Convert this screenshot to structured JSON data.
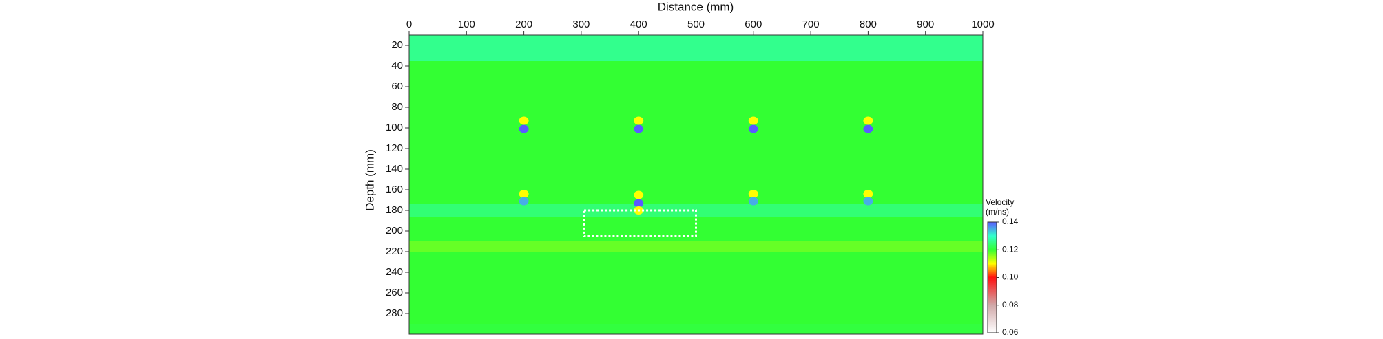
{
  "chart_data": {
    "type": "heatmap",
    "xlabel": "Distance (mm)",
    "ylabel": "Depth (mm)",
    "xlim": [
      0,
      1000
    ],
    "xticks": [
      0,
      100,
      200,
      300,
      400,
      500,
      600,
      700,
      800,
      900,
      1000
    ],
    "ylim": [
      10,
      300
    ],
    "yticks": [
      20,
      40,
      60,
      80,
      100,
      120,
      140,
      160,
      180,
      200,
      220,
      240,
      260,
      280
    ],
    "colorbar_title": [
      "Velocity",
      "(m/ns)"
    ],
    "clim": [
      0.06,
      0.14
    ],
    "cticks": [
      0.06,
      0.08,
      {
        "value": 0.1,
        "label": "0.10"
      },
      0.12,
      0.14
    ],
    "colorscale": [
      [
        0.06,
        "#ffffff"
      ],
      [
        0.08,
        "#d0a8a8"
      ],
      [
        0.1,
        "#ff1010"
      ],
      [
        0.11,
        "#ffff00"
      ],
      [
        0.12,
        "#33ff33"
      ],
      [
        0.13,
        "#33ffcc"
      ],
      [
        0.14,
        "#5a5aff"
      ]
    ],
    "background": 0.12,
    "bands": [
      {
        "y": [
          10,
          35
        ],
        "value": 0.127
      },
      {
        "y": [
          174,
          186
        ],
        "value": 0.125
      },
      {
        "y": [
          210,
          220
        ],
        "value": 0.117
      },
      {
        "y": [
          290,
          300
        ],
        "value": 0.121
      }
    ],
    "anomalies": [
      {
        "x": 200,
        "y": 93,
        "value": 0.11
      },
      {
        "x": 200,
        "y": 101,
        "value": 0.14
      },
      {
        "x": 400,
        "y": 93,
        "value": 0.11
      },
      {
        "x": 400,
        "y": 101,
        "value": 0.14
      },
      {
        "x": 600,
        "y": 93,
        "value": 0.11
      },
      {
        "x": 600,
        "y": 101,
        "value": 0.14
      },
      {
        "x": 800,
        "y": 93,
        "value": 0.11
      },
      {
        "x": 800,
        "y": 101,
        "value": 0.14
      },
      {
        "x": 200,
        "y": 164,
        "value": 0.11
      },
      {
        "x": 200,
        "y": 171,
        "value": 0.135
      },
      {
        "x": 400,
        "y": 165,
        "value": 0.11
      },
      {
        "x": 400,
        "y": 173,
        "value": 0.14
      },
      {
        "x": 400,
        "y": 180,
        "value": 0.11
      },
      {
        "x": 600,
        "y": 164,
        "value": 0.11
      },
      {
        "x": 600,
        "y": 171,
        "value": 0.135
      },
      {
        "x": 800,
        "y": 164,
        "value": 0.11
      },
      {
        "x": 800,
        "y": 171,
        "value": 0.135
      }
    ],
    "highlight": {
      "x": [
        305,
        500
      ],
      "y": [
        180,
        205
      ]
    }
  }
}
